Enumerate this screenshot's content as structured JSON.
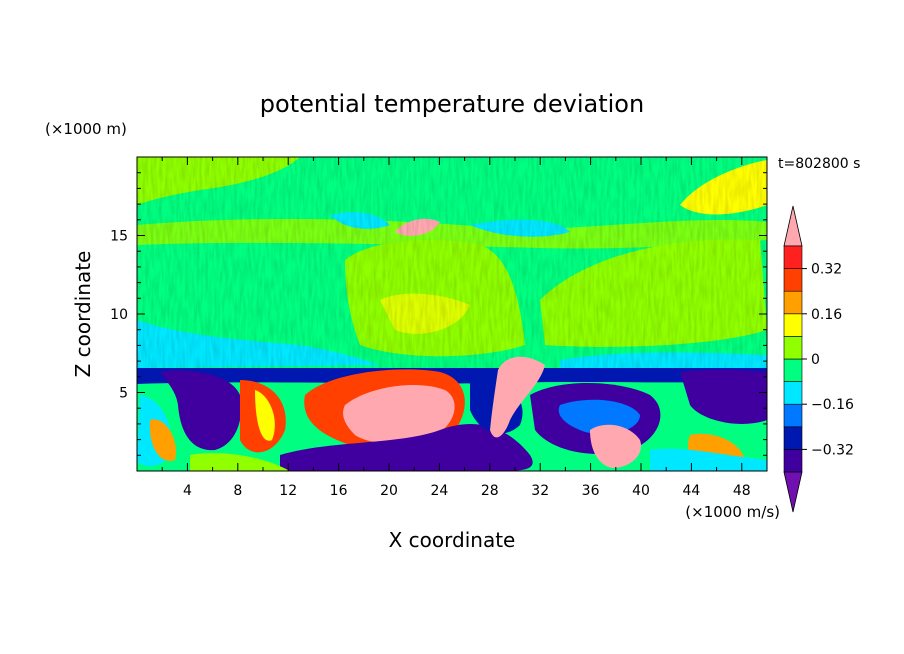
{
  "chart_data": {
    "type": "heatmap",
    "title": "potential temperature deviation",
    "xlabel": "X coordinate",
    "ylabel": "Z coordinate",
    "x_unit": "(×1000 m/s)",
    "y_unit": "(×1000 m)",
    "time_label": "t=802800 s",
    "xlim": [
      0,
      50
    ],
    "ylim": [
      0,
      20
    ],
    "x_ticks": [
      "4",
      "8",
      "12",
      "16",
      "20",
      "24",
      "28",
      "32",
      "36",
      "40",
      "44",
      "48"
    ],
    "x_tick_values": [
      4,
      8,
      12,
      16,
      20,
      24,
      28,
      32,
      36,
      40,
      44,
      48
    ],
    "y_ticks": [
      "5",
      "10",
      "15"
    ],
    "y_tick_values": [
      5,
      10,
      15
    ],
    "colorbar": {
      "labels": [
        "0.32",
        "0.16",
        "0",
        "−0.16",
        "−0.32"
      ],
      "label_values": [
        0.32,
        0.16,
        0,
        -0.16,
        -0.32
      ],
      "levels": [
        -0.4,
        -0.32,
        -0.24,
        -0.16,
        -0.08,
        0,
        0.08,
        0.16,
        0.24,
        0.32,
        0.4
      ],
      "colors": [
        "#7010b0",
        "#4000a0",
        "#0018b0",
        "#0078ff",
        "#00e8ff",
        "#00ff80",
        "#90ff00",
        "#ffff00",
        "#ffa000",
        "#ff4000",
        "#ff2020",
        "#ffa8b0"
      ]
    }
  }
}
